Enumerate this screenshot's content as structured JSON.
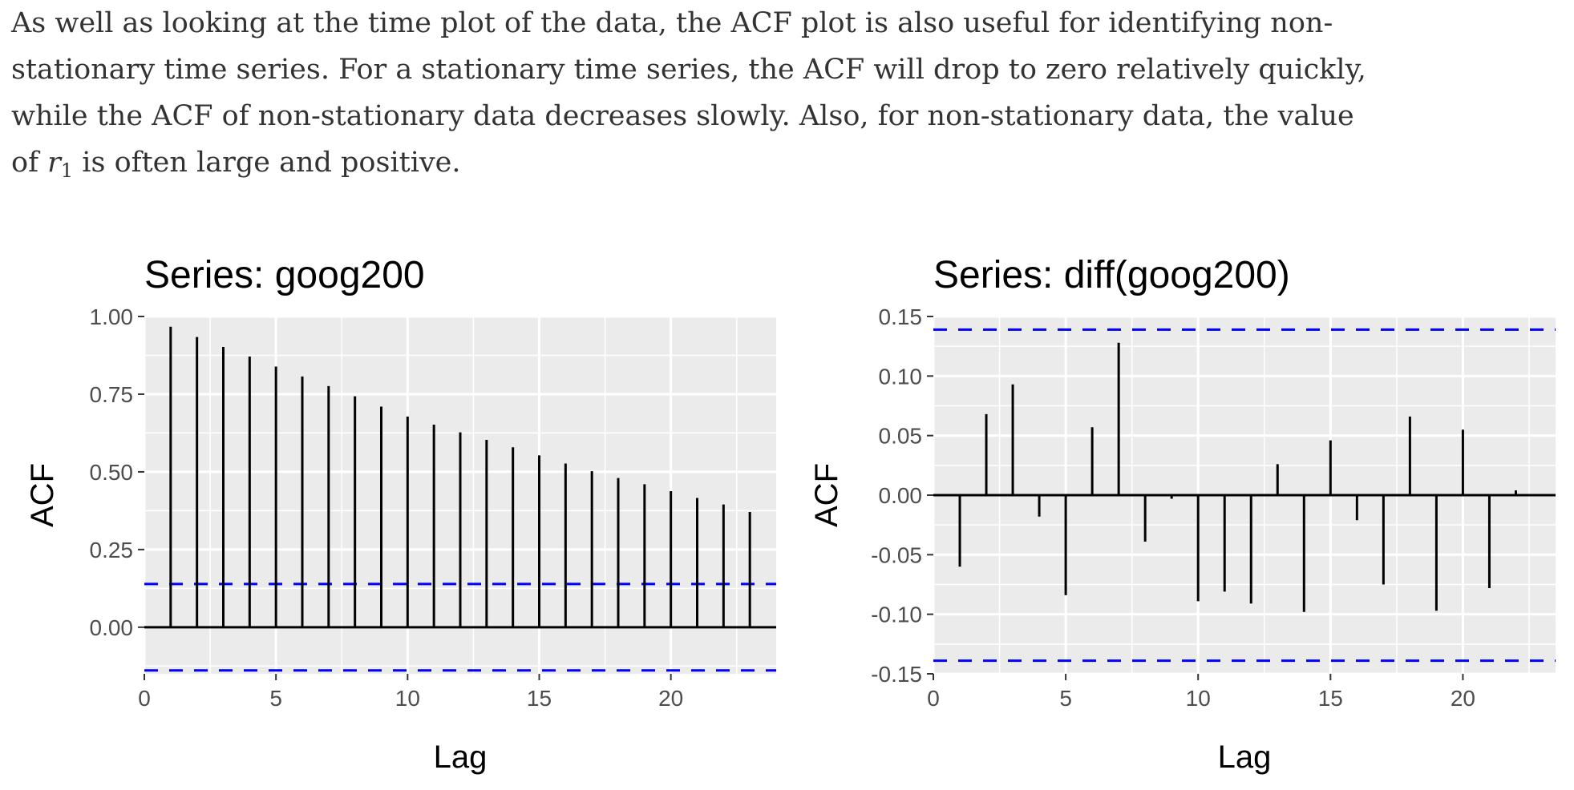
{
  "text": {
    "line1": "As well as looking at the time plot of the data, the ACF plot is also useful for identifying non-",
    "line2": "stationary time series. For a stationary time series, the ACF will drop to zero relatively quickly,",
    "line3": "while the ACF of non-stationary data decreases slowly. Also, for non-stationary data, the value",
    "line4_pre": "of ",
    "line4_var": "r",
    "line4_sub": "1",
    "line4_post": " is often large and positive."
  },
  "colors": {
    "panel_background": "#ebebeb",
    "grid": "#ffffff",
    "bars": "#000000",
    "confidence_band": "#0000ff"
  },
  "chart_data": [
    {
      "type": "bar",
      "title": "Series: goog200",
      "xlabel": "Lag",
      "ylabel": "ACF",
      "xlim": [
        0,
        24
      ],
      "ylim": [
        -0.15,
        1.0
      ],
      "x_ticks": [
        0,
        5,
        10,
        15,
        20
      ],
      "y_ticks": [
        0.0,
        0.25,
        0.5,
        0.75,
        1.0
      ],
      "y_tick_labels": [
        "0.00",
        "0.25",
        "0.50",
        "0.75",
        "1.00"
      ],
      "confidence_bounds": [
        -0.139,
        0.139
      ],
      "grid": true,
      "lags": [
        1,
        2,
        3,
        4,
        5,
        6,
        7,
        8,
        9,
        10,
        11,
        12,
        13,
        14,
        15,
        16,
        17,
        18,
        19,
        20,
        21,
        22,
        23
      ],
      "values": [
        0.967,
        0.934,
        0.902,
        0.871,
        0.839,
        0.807,
        0.776,
        0.743,
        0.71,
        0.678,
        0.652,
        0.627,
        0.603,
        0.579,
        0.553,
        0.527,
        0.502,
        0.48,
        0.46,
        0.438,
        0.416,
        0.395,
        0.371
      ]
    },
    {
      "type": "bar",
      "title": "Series: diff(goog200)",
      "xlabel": "Lag",
      "ylabel": "ACF",
      "xlim": [
        0,
        23.5
      ],
      "ylim": [
        -0.15,
        0.15
      ],
      "x_ticks": [
        0,
        5,
        10,
        15,
        20
      ],
      "y_ticks": [
        -0.15,
        -0.1,
        -0.05,
        0.0,
        0.05,
        0.1,
        0.15
      ],
      "y_tick_labels": [
        "-0.15",
        "-0.10",
        "-0.05",
        "0.00",
        "0.05",
        "0.10",
        "0.15"
      ],
      "confidence_bounds": [
        -0.139,
        0.139
      ],
      "grid": true,
      "lags": [
        1,
        2,
        3,
        4,
        5,
        6,
        7,
        8,
        9,
        10,
        11,
        12,
        13,
        14,
        15,
        16,
        17,
        18,
        19,
        20,
        21,
        22
      ],
      "values": [
        -0.06,
        0.068,
        0.093,
        -0.018,
        -0.084,
        0.057,
        0.128,
        -0.039,
        -0.003,
        -0.089,
        -0.081,
        -0.091,
        0.026,
        -0.098,
        0.046,
        -0.021,
        -0.075,
        0.066,
        -0.097,
        0.055,
        -0.078,
        0.004
      ]
    }
  ]
}
